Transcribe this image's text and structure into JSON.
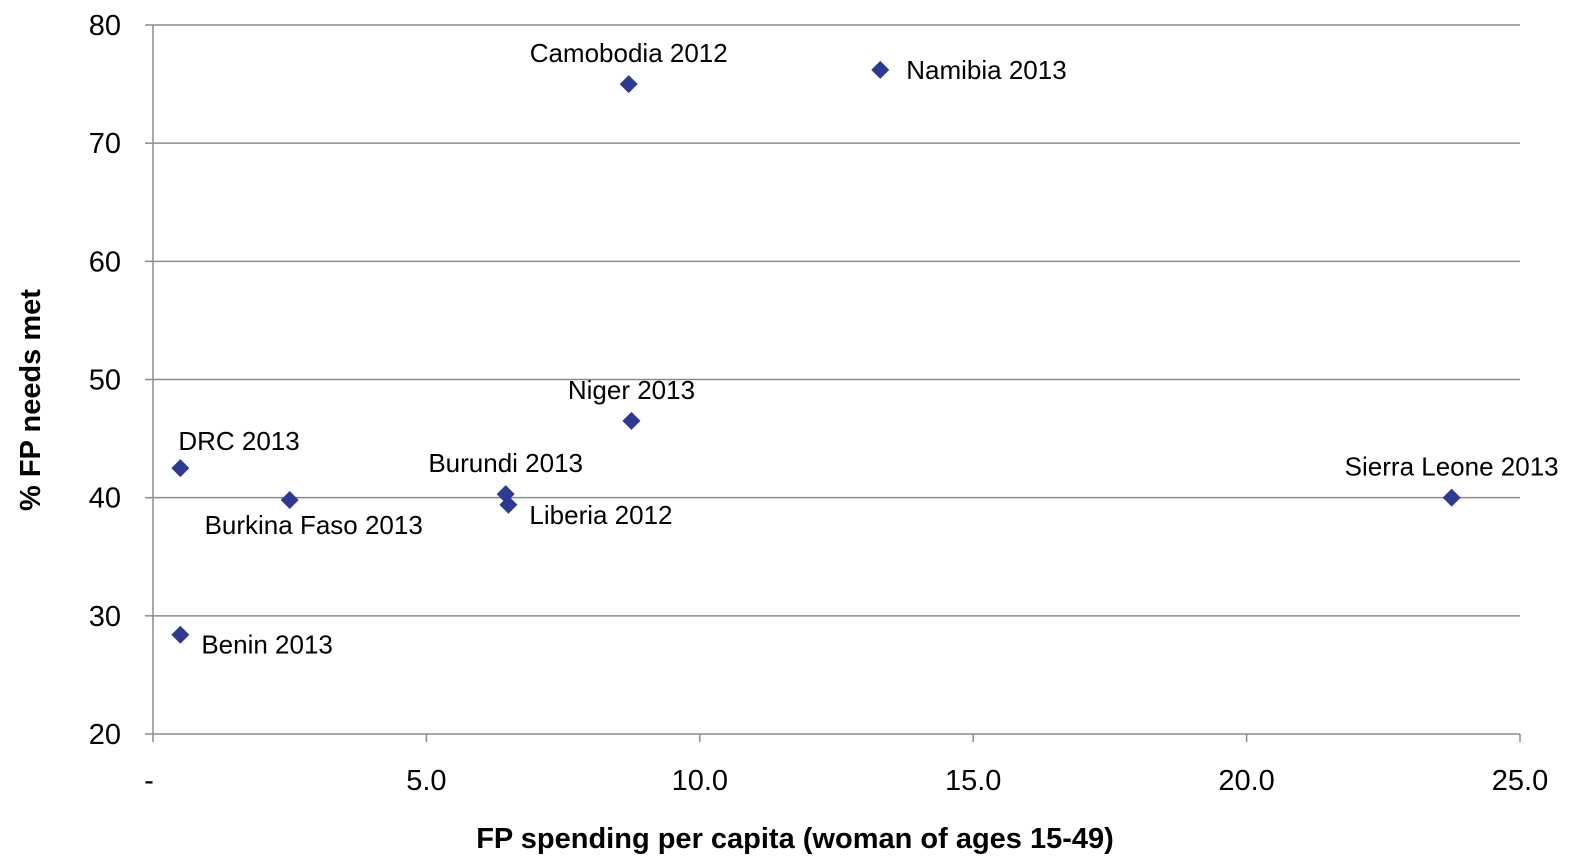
{
  "chart_data": {
    "type": "scatter",
    "title": "",
    "xlabel": "FP spending per capita (woman of ages 15-49)",
    "ylabel": "% FP needs met",
    "xlim": [
      0,
      25
    ],
    "ylim": [
      20,
      80
    ],
    "x_ticks": [
      {
        "value": 0,
        "label": "-"
      },
      {
        "value": 5,
        "label": "5.0"
      },
      {
        "value": 10,
        "label": "10.0"
      },
      {
        "value": 15,
        "label": "15.0"
      },
      {
        "value": 20,
        "label": "20.0"
      },
      {
        "value": 25,
        "label": "25.0"
      }
    ],
    "y_ticks": [
      {
        "value": 20,
        "label": "20"
      },
      {
        "value": 30,
        "label": "30"
      },
      {
        "value": 40,
        "label": "40"
      },
      {
        "value": 50,
        "label": "50"
      },
      {
        "value": 60,
        "label": "60"
      },
      {
        "value": 70,
        "label": "70"
      },
      {
        "value": 80,
        "label": "80"
      }
    ],
    "grid": true,
    "marker": "diamond",
    "color": "#2e3a92",
    "points": [
      {
        "label": "DRC 2013",
        "x": 0.5,
        "y": 42.5,
        "label_pos": "above-right"
      },
      {
        "label": "Benin 2013",
        "x": 0.5,
        "y": 28.4,
        "label_pos": "right-below"
      },
      {
        "label": "Burkina Faso 2013",
        "x": 2.5,
        "y": 39.8,
        "label_pos": "below"
      },
      {
        "label": "Burundi 2013",
        "x": 6.45,
        "y": 40.3,
        "label_pos": "above"
      },
      {
        "label": "Liberia 2012",
        "x": 6.5,
        "y": 39.4,
        "label_pos": "right-below"
      },
      {
        "label": "Niger 2013",
        "x": 8.75,
        "y": 46.5,
        "label_pos": "above"
      },
      {
        "label": "Camobodia 2012",
        "x": 8.7,
        "y": 75.0,
        "label_pos": "above"
      },
      {
        "label": "Namibia 2013",
        "x": 13.3,
        "y": 76.2,
        "label_pos": "right"
      },
      {
        "label": "Sierra Leone 2013",
        "x": 23.75,
        "y": 40.0,
        "label_pos": "above"
      }
    ]
  }
}
